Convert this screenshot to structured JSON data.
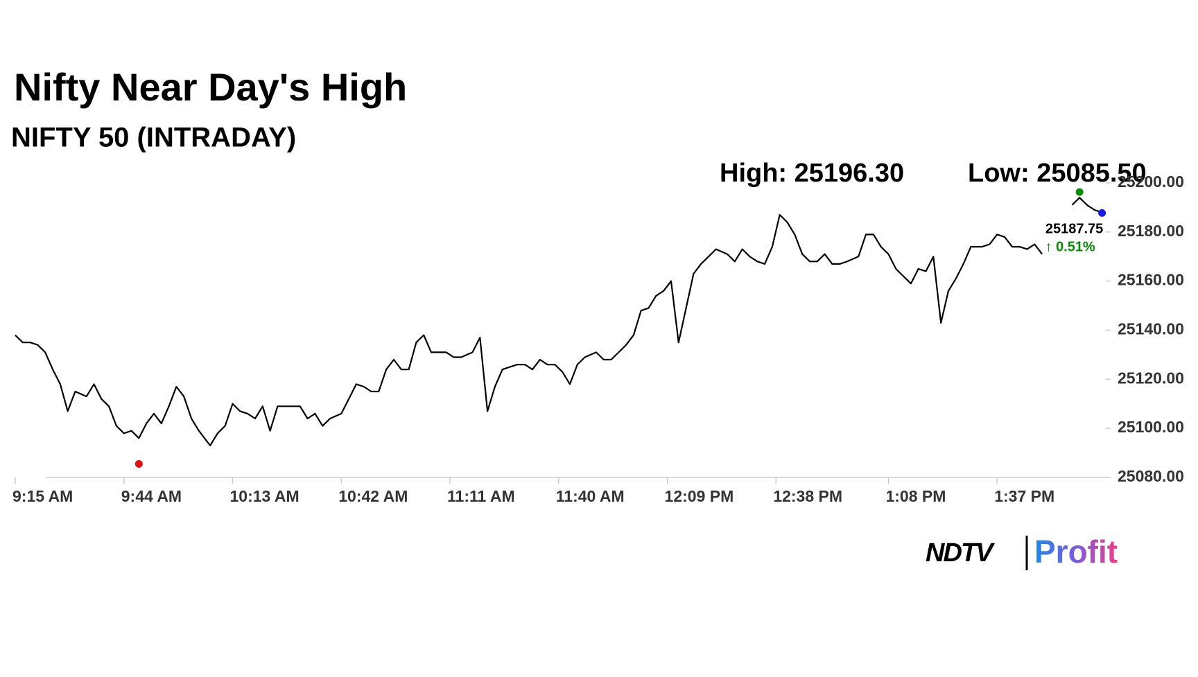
{
  "chart_data": {
    "type": "line",
    "title": "Nifty Near Day's High",
    "subtitle": "NIFTY 50 (INTRADAY)",
    "color": "#000000",
    "x": [
      555,
      557,
      559,
      561,
      563,
      565,
      567,
      569,
      571,
      574,
      576,
      578,
      580,
      582,
      584,
      586,
      588,
      590,
      592,
      594,
      596,
      598,
      600,
      602,
      604,
      607,
      609,
      611,
      613,
      615,
      617,
      619,
      621,
      623,
      625,
      627,
      629,
      631,
      633,
      635,
      637,
      639,
      642,
      644,
      646,
      648,
      650,
      652,
      654,
      656,
      658,
      660,
      662,
      664,
      666,
      668,
      670,
      672,
      674,
      677,
      679,
      681,
      683,
      685,
      687,
      689,
      691,
      693,
      695,
      697,
      699,
      701,
      703,
      705,
      707,
      710,
      712,
      714,
      716,
      718,
      720,
      722,
      724,
      726,
      728,
      730,
      732,
      734,
      736,
      738,
      740,
      742,
      745,
      747,
      749,
      751,
      753,
      755,
      757,
      759,
      761,
      763,
      765,
      767,
      769,
      771,
      773,
      775,
      777,
      780,
      782,
      784,
      786,
      788,
      790,
      792,
      794,
      796,
      798,
      800,
      802,
      804,
      806,
      808,
      810,
      813,
      815,
      817,
      819,
      821,
      823,
      825,
      827,
      829,
      831,
      833,
      835,
      837,
      839,
      841,
      843,
      845
    ],
    "values": [
      25138,
      25135,
      25135,
      25134,
      25131,
      25124,
      25118,
      25107,
      25115,
      25113,
      25118,
      25112,
      25109,
      25101,
      25098,
      25099,
      25096,
      25102,
      25106,
      25102,
      25109,
      25117,
      25113,
      25104,
      25099,
      25093,
      25098,
      25101,
      25110,
      25107,
      25106,
      25104,
      25109,
      25099,
      25109,
      25109,
      25109,
      25109,
      25104,
      25106,
      25101,
      25104,
      25106,
      25112,
      25118,
      25117,
      25115,
      25115,
      25124,
      25128,
      25124,
      25124,
      25135,
      25138,
      25131,
      25131,
      25131,
      25129,
      25129,
      25131,
      25137,
      25107,
      25117,
      25124,
      25125,
      25126,
      25126,
      25124,
      25128,
      25126,
      25126,
      25123,
      25118,
      25126,
      25129,
      25131,
      25128,
      25128,
      25131,
      25134,
      25138,
      25148,
      25149,
      25154,
      25156,
      25160,
      25135,
      25149,
      25163,
      25167,
      25170,
      25173,
      25171,
      25168,
      25173,
      25170,
      25168,
      25167,
      25174,
      25187,
      25184,
      25179,
      25171,
      25168,
      25168,
      25171,
      25167,
      25167,
      25168,
      25170,
      25179,
      25179,
      25174,
      25171,
      25165,
      25162,
      25159,
      25165,
      25164,
      25170,
      25143,
      25156,
      25161,
      25167,
      25174,
      25174,
      25175,
      25179,
      25178,
      25174,
      25174,
      25173,
      25175,
      25171,
      null,
      null,
      null,
      25191,
      25194,
      25191,
      25189,
      25188
    ],
    "xlim": [
      555,
      846
    ],
    "xticks": [
      {
        "value": 555,
        "label": "9:15 AM"
      },
      {
        "value": 584,
        "label": "9:44 AM"
      },
      {
        "value": 613,
        "label": "10:13 AM"
      },
      {
        "value": 642,
        "label": "10:42 AM"
      },
      {
        "value": 671,
        "label": "11:11 AM"
      },
      {
        "value": 700,
        "label": "11:40 AM"
      },
      {
        "value": 729,
        "label": "12:09 PM"
      },
      {
        "value": 758,
        "label": "12:38 PM"
      },
      {
        "value": 788,
        "label": "1:08 PM"
      },
      {
        "value": 817,
        "label": "1:37 PM"
      }
    ],
    "ylim": [
      25080,
      25200
    ],
    "yticks": [
      {
        "value": 25080,
        "label": "25080.00"
      },
      {
        "value": 25100,
        "label": "25100.00"
      },
      {
        "value": 25120,
        "label": "25120.00"
      },
      {
        "value": 25140,
        "label": "25140.00"
      },
      {
        "value": 25160,
        "label": "25160.00"
      },
      {
        "value": 25180,
        "label": "25180.00"
      },
      {
        "value": 25200,
        "label": "25200.00"
      }
    ],
    "annotations": [
      "High: 25196.30",
      "Low: 25085.50"
    ],
    "markers": [
      {
        "x": 839,
        "value": 25196.3,
        "color": "#0a8a0a"
      },
      {
        "x": 588,
        "value": 25085.5,
        "color": "#e01010"
      },
      {
        "x": 845,
        "value": 25187.75,
        "color": "#1a1adf",
        "label": "25187.75"
      }
    ],
    "change_label": "↑ 0.51%",
    "change_color": "#0a8a0a"
  },
  "logo": {
    "left": "NDTV",
    "right": "Profit"
  }
}
